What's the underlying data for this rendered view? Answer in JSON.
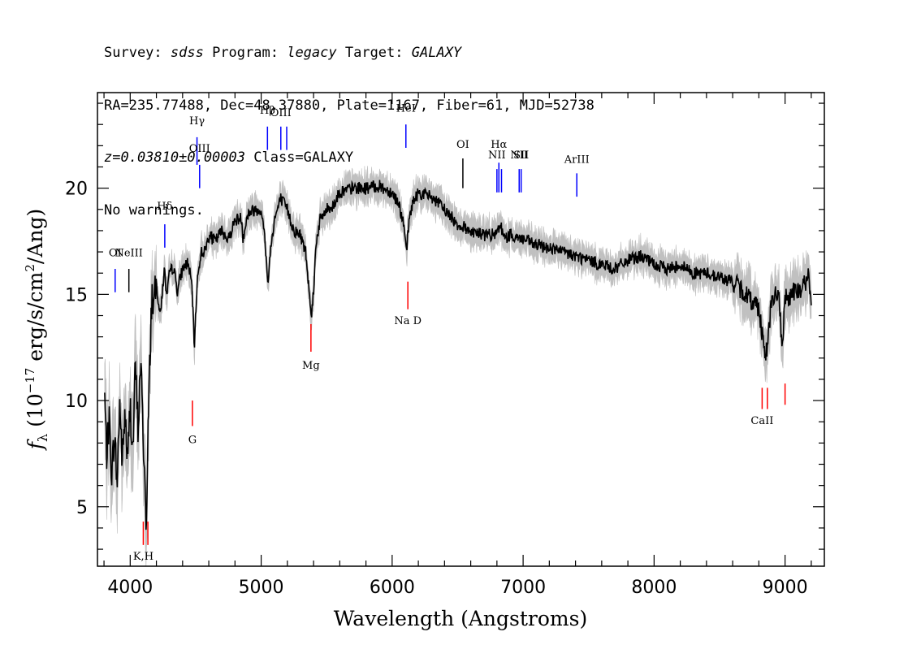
{
  "header": {
    "line1": [
      {
        "text": "Survey: ",
        "italic": false
      },
      {
        "text": "sdss",
        "italic": true
      },
      {
        "text": " Program: ",
        "italic": false
      },
      {
        "text": "legacy",
        "italic": true
      },
      {
        "text": " Target: ",
        "italic": false
      },
      {
        "text": "GALAXY",
        "italic": true
      }
    ],
    "line2": "RA=235.77488, Dec=48.37880, Plate=1167, Fiber=61, MJD=52738",
    "line3": [
      {
        "text": "z=0.03810±0.00003",
        "italic": true
      },
      {
        "text": " Class=GALAXY",
        "italic": false
      }
    ],
    "line4": "No warnings."
  },
  "chart_data": {
    "type": "line",
    "xlabel": "Wavelength (Angstroms)",
    "ylabel_parts": {
      "sym": "f",
      "sub": "λ",
      "pre": " (10",
      "exp": "−17",
      "mid": " erg/s/cm",
      "exp2": "2",
      "post": "/Ang)"
    },
    "xlim": [
      3750,
      9300
    ],
    "ylim": [
      2.2,
      24.5
    ],
    "xticks": [
      4000,
      5000,
      6000,
      7000,
      8000,
      9000
    ],
    "yticks": [
      5,
      10,
      15,
      20
    ],
    "colors": {
      "flux": "#000000",
      "noise_band": "#c0c0c0",
      "emission": "#0000ff",
      "absorption": "#ff0000",
      "sky": "#000000"
    },
    "flux_nodes": [
      [
        3805,
        10.2
      ],
      [
        3820,
        7.5
      ],
      [
        3840,
        9.0
      ],
      [
        3860,
        6.5
      ],
      [
        3880,
        8.5
      ],
      [
        3900,
        6.0
      ],
      [
        3920,
        10.0
      ],
      [
        3940,
        7.0
      ],
      [
        3960,
        9.5
      ],
      [
        3980,
        7.0
      ],
      [
        4000,
        9.8
      ],
      [
        4020,
        7.5
      ],
      [
        4040,
        11.8
      ],
      [
        4060,
        8.5
      ],
      [
        4080,
        12.0
      ],
      [
        4095,
        9.0
      ],
      [
        4110,
        6.5
      ],
      [
        4125,
        4.0
      ],
      [
        4135,
        8.0
      ],
      [
        4150,
        12.0
      ],
      [
        4165,
        15.0
      ],
      [
        4180,
        14.5
      ],
      [
        4200,
        15.5
      ],
      [
        4230,
        14.0
      ],
      [
        4260,
        16.2
      ],
      [
        4280,
        14.8
      ],
      [
        4300,
        16.0
      ],
      [
        4330,
        16.3
      ],
      [
        4360,
        15.2
      ],
      [
        4400,
        16.2
      ],
      [
        4440,
        16.5
      ],
      [
        4470,
        15.5
      ],
      [
        4490,
        12.5
      ],
      [
        4510,
        15.5
      ],
      [
        4540,
        17.0
      ],
      [
        4570,
        17.0
      ],
      [
        4600,
        17.8
      ],
      [
        4650,
        17.5
      ],
      [
        4700,
        18.0
      ],
      [
        4750,
        17.6
      ],
      [
        4800,
        18.5
      ],
      [
        4850,
        18.6
      ],
      [
        4861,
        17.7
      ],
      [
        4900,
        18.8
      ],
      [
        4950,
        19.0
      ],
      [
        5000,
        19.0
      ],
      [
        5030,
        17.5
      ],
      [
        5050,
        15.5
      ],
      [
        5070,
        17.0
      ],
      [
        5100,
        18.5
      ],
      [
        5150,
        19.5
      ],
      [
        5200,
        19.0
      ],
      [
        5250,
        18.0
      ],
      [
        5300,
        17.8
      ],
      [
        5340,
        17.0
      ],
      [
        5370,
        15.0
      ],
      [
        5385,
        14.0
      ],
      [
        5400,
        15.2
      ],
      [
        5420,
        17.5
      ],
      [
        5450,
        18.5
      ],
      [
        5500,
        19.0
      ],
      [
        5550,
        19.2
      ],
      [
        5600,
        19.8
      ],
      [
        5700,
        20.0
      ],
      [
        5800,
        20.0
      ],
      [
        5900,
        20.1
      ],
      [
        6000,
        19.8
      ],
      [
        6050,
        19.3
      ],
      [
        6080,
        18.5
      ],
      [
        6110,
        17.0
      ],
      [
        6130,
        18.5
      ],
      [
        6150,
        19.2
      ],
      [
        6200,
        19.8
      ],
      [
        6300,
        19.6
      ],
      [
        6400,
        19.0
      ],
      [
        6500,
        18.3
      ],
      [
        6600,
        18.0
      ],
      [
        6700,
        17.8
      ],
      [
        6800,
        17.8
      ],
      [
        6830,
        18.4
      ],
      [
        6850,
        17.6
      ],
      [
        6900,
        17.8
      ],
      [
        7000,
        17.6
      ],
      [
        7100,
        17.3
      ],
      [
        7200,
        17.2
      ],
      [
        7300,
        17.0
      ],
      [
        7400,
        16.8
      ],
      [
        7500,
        16.6
      ],
      [
        7600,
        16.4
      ],
      [
        7700,
        16.2
      ],
      [
        7800,
        16.6
      ],
      [
        7900,
        16.8
      ],
      [
        8000,
        16.4
      ],
      [
        8100,
        16.2
      ],
      [
        8200,
        16.4
      ],
      [
        8300,
        16.0
      ],
      [
        8400,
        16.0
      ],
      [
        8500,
        15.8
      ],
      [
        8600,
        15.6
      ],
      [
        8700,
        15.0
      ],
      [
        8800,
        14.4
      ],
      [
        8850,
        12.0
      ],
      [
        8870,
        13.0
      ],
      [
        8900,
        14.8
      ],
      [
        8950,
        15.0
      ],
      [
        8980,
        12.5
      ],
      [
        9000,
        14.8
      ],
      [
        9050,
        15.0
      ],
      [
        9100,
        15.2
      ],
      [
        9150,
        15.5
      ],
      [
        9180,
        15.8
      ],
      [
        9200,
        14.5
      ]
    ],
    "line_markers": [
      {
        "label": "OI",
        "x": 3885,
        "y0": 15.1,
        "y1": 16.2,
        "kind": "emission",
        "label_y": 16.8
      },
      {
        "label": "NeIII",
        "x": 3990,
        "y0": 15.1,
        "y1": 16.2,
        "kind": "sky",
        "label_y": 16.8
      },
      {
        "label": "Hδ",
        "x": 4264,
        "y0": 17.2,
        "y1": 18.3,
        "kind": "emission",
        "label_y": 19.0
      },
      {
        "label": "Hγ",
        "x": 4510,
        "y0": 21.1,
        "y1": 22.4,
        "kind": "emission",
        "label_y": 23.0
      },
      {
        "label": "OIII",
        "x": 4530,
        "y0": 20.0,
        "y1": 21.1,
        "kind": "emission",
        "label_y": 21.7
      },
      {
        "label": "Hβ",
        "x": 5048,
        "y0": 21.8,
        "y1": 22.9,
        "kind": "emission",
        "label_y": 23.5
      },
      {
        "label": "OIII",
        "x": 5150,
        "y0": 21.8,
        "y1": 22.9,
        "kind": "emission",
        "label_y": 23.4
      },
      {
        "label": "",
        "x": 5195,
        "y0": 21.8,
        "y1": 22.9,
        "kind": "emission",
        "label_y": 23.4
      },
      {
        "label": "HeI",
        "x": 6105,
        "y0": 21.9,
        "y1": 23.0,
        "kind": "emission",
        "label_y": 23.6
      },
      {
        "label": "OI",
        "x": 6540,
        "y0": 20.0,
        "y1": 21.4,
        "kind": "sky",
        "label_y": 21.9
      },
      {
        "label": "NII",
        "x": 6800,
        "y0": 19.8,
        "y1": 20.9,
        "kind": "emission",
        "label_y": 21.4
      },
      {
        "label": "Hα",
        "x": 6815,
        "y0": 19.8,
        "y1": 21.2,
        "kind": "emission",
        "label_y": 21.9
      },
      {
        "label": "",
        "x": 6835,
        "y0": 19.8,
        "y1": 20.9,
        "kind": "emission",
        "label_y": 21.4
      },
      {
        "label": "NII",
        "x": 6970,
        "y0": 19.8,
        "y1": 20.9,
        "kind": "emission",
        "label_y": 21.4
      },
      {
        "label": "SII",
        "x": 6985,
        "y0": 19.8,
        "y1": 20.9,
        "kind": "emission",
        "label_y": 21.4
      },
      {
        "label": "ArIII",
        "x": 7410,
        "y0": 19.6,
        "y1": 20.7,
        "kind": "emission",
        "label_y": 21.2
      },
      {
        "label": "K,H",
        "x": 4100,
        "y0": 3.2,
        "y1": 4.3,
        "kind": "absorption",
        "label_y": 2.5
      },
      {
        "label": "",
        "x": 4135,
        "y0": 3.2,
        "y1": 4.3,
        "kind": "absorption",
        "label_y": 2.5
      },
      {
        "label": "G",
        "x": 4475,
        "y0": 8.8,
        "y1": 10.0,
        "kind": "absorption",
        "label_y": 8.0
      },
      {
        "label": "Mg",
        "x": 5380,
        "y0": 12.3,
        "y1": 13.6,
        "kind": "absorption",
        "label_y": 11.5
      },
      {
        "label": "Na D",
        "x": 6120,
        "y0": 14.3,
        "y1": 15.6,
        "kind": "absorption",
        "label_y": 13.6
      },
      {
        "label": "CaII",
        "x": 8825,
        "y0": 9.6,
        "y1": 10.6,
        "kind": "absorption",
        "label_y": 8.9
      },
      {
        "label": "",
        "x": 8865,
        "y0": 9.6,
        "y1": 10.6,
        "kind": "absorption",
        "label_y": 8.9
      },
      {
        "label": "",
        "x": 9000,
        "y0": 9.8,
        "y1": 10.8,
        "kind": "absorption",
        "label_y": 8.9
      }
    ]
  }
}
